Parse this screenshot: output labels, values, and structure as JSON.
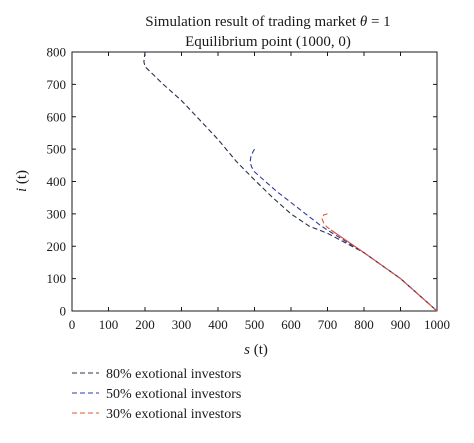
{
  "chart_data": {
    "type": "line",
    "title_line1_text": "Simulation result of trading market ",
    "title_line1_symbol": "θ",
    "title_line1_suffix": " = 1",
    "title_line2": "Equilibrium point (1000, 0)",
    "xlabel_var": "s",
    "xlabel_arg": " (t)",
    "ylabel_var": "i",
    "ylabel_arg": " (t)",
    "xlim": [
      0,
      1000
    ],
    "ylim": [
      0,
      800
    ],
    "xticks": [
      "0",
      "100",
      "200",
      "300",
      "400",
      "500",
      "600",
      "700",
      "800",
      "900",
      "1000"
    ],
    "yticks": [
      "0",
      "100",
      "200",
      "300",
      "400",
      "500",
      "600",
      "700",
      "800"
    ],
    "grid": false,
    "legend_position": "below",
    "series": [
      {
        "name": "80% exotional investors",
        "color": "#2b2f4a",
        "points": [
          [
            200,
            800
          ],
          [
            197,
            770
          ],
          [
            200,
            755
          ],
          [
            218,
            735
          ],
          [
            250,
            700
          ],
          [
            300,
            650
          ],
          [
            350,
            590
          ],
          [
            400,
            530
          ],
          [
            450,
            462
          ],
          [
            500,
            405
          ],
          [
            550,
            350
          ],
          [
            600,
            300
          ],
          [
            650,
            262
          ],
          [
            700,
            240
          ],
          [
            800,
            180
          ],
          [
            900,
            100
          ],
          [
            1000,
            0
          ]
        ]
      },
      {
        "name": "50% exotional investors",
        "color": "#2e3aa6",
        "points": [
          [
            500,
            500
          ],
          [
            495,
            490
          ],
          [
            490,
            475
          ],
          [
            488,
            460
          ],
          [
            492,
            445
          ],
          [
            500,
            430
          ],
          [
            525,
            405
          ],
          [
            560,
            370
          ],
          [
            600,
            335
          ],
          [
            640,
            300
          ],
          [
            680,
            265
          ],
          [
            700,
            250
          ],
          [
            800,
            180
          ],
          [
            900,
            100
          ],
          [
            1000,
            0
          ]
        ]
      },
      {
        "name": "30% exotional investors",
        "color": "#e8552b",
        "points": [
          [
            700,
            300
          ],
          [
            690,
            297
          ],
          [
            685,
            285
          ],
          [
            690,
            270
          ],
          [
            700,
            258
          ],
          [
            710,
            250
          ],
          [
            800,
            180
          ],
          [
            900,
            100
          ],
          [
            1000,
            0
          ]
        ]
      }
    ],
    "solid_tail_color": "#d9433c",
    "solid_tail_points": [
      [
        710,
        250
      ],
      [
        800,
        180
      ],
      [
        900,
        100
      ],
      [
        1000,
        0
      ]
    ]
  }
}
